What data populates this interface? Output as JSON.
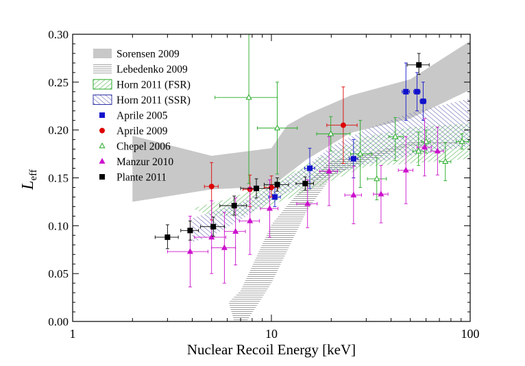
{
  "chart_data": {
    "type": "scatter",
    "title": "",
    "xlabel": "Nuclear Recoil Energy [keV]",
    "ylabel_main": "L",
    "ylabel_sub": "eff",
    "xscale": "log",
    "xlim": [
      1,
      100
    ],
    "ylim": [
      0,
      0.3
    ],
    "xticks": [
      {
        "value": 1,
        "label": "1"
      },
      {
        "value": 10,
        "label": "10"
      },
      {
        "value": 100,
        "label": "100"
      }
    ],
    "yticks": [
      {
        "value": 0.0,
        "label": "0.00"
      },
      {
        "value": 0.05,
        "label": "0.05"
      },
      {
        "value": 0.1,
        "label": "0.10"
      },
      {
        "value": 0.15,
        "label": "0.15"
      },
      {
        "value": 0.2,
        "label": "0.20"
      },
      {
        "value": 0.25,
        "label": "0.25"
      },
      {
        "value": 0.3,
        "label": "0.30"
      }
    ],
    "legend_position": "top-left",
    "bands": [
      {
        "name": "Sorensen 2009",
        "style": "solid",
        "color": "#c8c8c8",
        "upper": [
          [
            2,
            0.194
          ],
          [
            5,
            0.173
          ],
          [
            10,
            0.181
          ],
          [
            12,
            0.205
          ],
          [
            15,
            0.216
          ],
          [
            25,
            0.236
          ],
          [
            50,
            0.253
          ],
          [
            100,
            0.293
          ]
        ],
        "lower": [
          [
            100,
            0.242
          ],
          [
            50,
            0.212
          ],
          [
            25,
            0.197
          ],
          [
            15,
            0.169
          ],
          [
            10,
            0.141
          ],
          [
            5,
            0.138
          ],
          [
            2,
            0.125
          ]
        ]
      },
      {
        "name": "Lebedenko 2009",
        "style": "hlines",
        "color": "#999999",
        "upper": [
          [
            7,
            0.032
          ],
          [
            10,
            0.101
          ],
          [
            15,
            0.145
          ],
          [
            20,
            0.168
          ],
          [
            30,
            0.175
          ],
          [
            50,
            0.187
          ],
          [
            100,
            0.187
          ]
        ],
        "lower": [
          [
            100,
            0.187
          ],
          [
            50,
            0.183
          ],
          [
            30,
            0.168
          ],
          [
            20,
            0.151
          ],
          [
            15,
            0.115
          ],
          [
            10,
            0.04
          ],
          [
            7.5,
            0.0
          ],
          [
            6.5,
            0.0
          ],
          [
            6.1,
            0.02
          ]
        ]
      },
      {
        "name": "Horn 2011 (FSR)",
        "style": "diag-green",
        "color": "#7cc07c",
        "border": "#22aa22",
        "upper": [
          [
            6,
            0.128
          ],
          [
            10,
            0.144
          ],
          [
            15,
            0.164
          ],
          [
            20,
            0.177
          ],
          [
            30,
            0.193
          ],
          [
            50,
            0.203
          ],
          [
            100,
            0.207
          ]
        ],
        "lower": [
          [
            100,
            0.17
          ],
          [
            50,
            0.165
          ],
          [
            30,
            0.162
          ],
          [
            20,
            0.147
          ],
          [
            15,
            0.135
          ],
          [
            10,
            0.122
          ],
          [
            7,
            0.11
          ],
          [
            5,
            0.11
          ],
          [
            4,
            0.118
          ]
        ]
      },
      {
        "name": "Horn 2011 (SSR)",
        "style": "diag-blue",
        "color": "#8a8ac8",
        "border": "#3333aa",
        "upper": [
          [
            4,
            0.108
          ],
          [
            7,
            0.124
          ],
          [
            10,
            0.141
          ],
          [
            15,
            0.162
          ],
          [
            20,
            0.183
          ],
          [
            30,
            0.201
          ],
          [
            50,
            0.218
          ],
          [
            100,
            0.233
          ]
        ],
        "lower": [
          [
            100,
            0.183
          ],
          [
            50,
            0.173
          ],
          [
            30,
            0.164
          ],
          [
            20,
            0.153
          ],
          [
            15,
            0.143
          ],
          [
            10,
            0.127
          ],
          [
            7,
            0.106
          ],
          [
            5,
            0.089
          ],
          [
            4,
            0.083
          ]
        ]
      }
    ],
    "series": [
      {
        "name": "Aprile 2005",
        "marker": "square",
        "color": "#1111cc",
        "filled": true,
        "points": [
          {
            "x": 10.4,
            "y": 0.13,
            "xerr": [
              0.7,
              0.7
            ],
            "yerr": [
              0.01,
              0.01
            ]
          },
          {
            "x": 15.6,
            "y": 0.16,
            "xerr": [
              0.9,
              0.9
            ],
            "yerr": [
              0.021,
              0.021
            ]
          },
          {
            "x": 25.9,
            "y": 0.17,
            "xerr": [
              1.3,
              1.3
            ],
            "yerr": [
              0.02,
              0.02
            ]
          },
          {
            "x": 47.5,
            "y": 0.24,
            "xerr": [
              2.0,
              2.0
            ],
            "yerr": [
              0.03,
              0.03
            ]
          },
          {
            "x": 54.0,
            "y": 0.24,
            "xerr": [
              2.0,
              2.0
            ],
            "yerr": [
              0.02,
              0.02
            ]
          },
          {
            "x": 58.0,
            "y": 0.23,
            "xerr": [
              2.0,
              2.0
            ],
            "yerr": [
              0.02,
              0.02
            ]
          }
        ]
      },
      {
        "name": "Aprile 2009",
        "marker": "circle",
        "color": "#dd0000",
        "filled": true,
        "points": [
          {
            "x": 5.0,
            "y": 0.141,
            "xerr": [
              0.4,
              0.4
            ],
            "yerr": [
              0.035,
              0.025
            ]
          },
          {
            "x": 7.8,
            "y": 0.138,
            "xerr": [
              0.6,
              0.6
            ],
            "yerr": [
              0.018,
              0.015
            ]
          },
          {
            "x": 10.0,
            "y": 0.14,
            "xerr": [
              0.8,
              0.8
            ],
            "yerr": [
              0.01,
              0.012
            ]
          },
          {
            "x": 23.0,
            "y": 0.205,
            "xerr": [
              4.0,
              4.0
            ],
            "yerr": [
              0.04,
              0.04
            ]
          }
        ]
      },
      {
        "name": "Chepel 2006",
        "marker": "triangle",
        "color": "#22aa22",
        "filled": false,
        "points": [
          {
            "x": 7.7,
            "y": 0.234,
            "xerr": [
              2.5,
              3.0
            ],
            "yerr": [
              0.09,
              0.085
            ]
          },
          {
            "x": 10.7,
            "y": 0.202,
            "xerr": [
              2.2,
              2.8
            ],
            "yerr": [
              0.048,
              0.048
            ]
          },
          {
            "x": 19.9,
            "y": 0.196,
            "xerr": [
              3.0,
              5.0
            ],
            "yerr": [
              0.018,
              0.018
            ]
          },
          {
            "x": 28.0,
            "y": 0.175,
            "xerr": [
              3.0,
              4.0
            ],
            "yerr": [
              0.035,
              0.035
            ]
          },
          {
            "x": 33.9,
            "y": 0.149,
            "xerr": [
              3.5,
              4.0
            ],
            "yerr": [
              0.022,
              0.022
            ]
          },
          {
            "x": 42.0,
            "y": 0.193,
            "xerr": [
              3.0,
              4.0
            ],
            "yerr": [
              0.025,
              0.02
            ]
          },
          {
            "x": 55.0,
            "y": 0.178,
            "xerr": [
              3.5,
              4.0
            ],
            "yerr": [
              0.015,
              0.02
            ]
          },
          {
            "x": 60.0,
            "y": 0.188,
            "xerr": [
              3.0,
              3.0
            ],
            "yerr": [
              0.012,
              0.012
            ]
          },
          {
            "x": 75.0,
            "y": 0.167,
            "xerr": [
              5.0,
              5.0
            ],
            "yerr": [
              0.02,
              0.02
            ]
          },
          {
            "x": 91.0,
            "y": 0.188,
            "xerr": [
              6.0,
              7.0
            ],
            "yerr": [
              0.008,
              0.008
            ]
          }
        ]
      },
      {
        "name": "Manzur 2010",
        "marker": "triangle",
        "color": "#cc11cc",
        "filled": true,
        "points": [
          {
            "x": 3.9,
            "y": 0.073,
            "xerr": [
              0.9,
              0.9
            ],
            "yerr": [
              0.037,
              0.037
            ]
          },
          {
            "x": 5.0,
            "y": 0.088,
            "xerr": [
              0.9,
              0.9
            ],
            "yerr": [
              0.038,
              0.038
            ]
          },
          {
            "x": 5.8,
            "y": 0.077,
            "xerr": [
              0.8,
              0.8
            ],
            "yerr": [
              0.037,
              0.037
            ]
          },
          {
            "x": 6.6,
            "y": 0.094,
            "xerr": [
              0.8,
              0.8
            ],
            "yerr": [
              0.035,
              0.035
            ]
          },
          {
            "x": 7.8,
            "y": 0.105,
            "xerr": [
              0.9,
              0.9
            ],
            "yerr": [
              0.035,
              0.035
            ]
          },
          {
            "x": 9.8,
            "y": 0.118,
            "xerr": [
              1.0,
              1.0
            ],
            "yerr": [
              0.03,
              0.03
            ]
          },
          {
            "x": 15.2,
            "y": 0.123,
            "xerr": [
              1.8,
              1.8
            ],
            "yerr": [
              0.025,
              0.025
            ]
          },
          {
            "x": 19.5,
            "y": 0.157,
            "xerr": [
              2.0,
              2.0
            ],
            "yerr": [
              0.036,
              0.036
            ]
          },
          {
            "x": 25.9,
            "y": 0.132,
            "xerr": [
              2.5,
              2.5
            ],
            "yerr": [
              0.03,
              0.03
            ]
          },
          {
            "x": 35.6,
            "y": 0.133,
            "xerr": [
              3.0,
              3.0
            ],
            "yerr": [
              0.03,
              0.03
            ]
          },
          {
            "x": 47.5,
            "y": 0.158,
            "xerr": [
              4.0,
              4.0
            ],
            "yerr": [
              0.035,
              0.035
            ]
          },
          {
            "x": 59.0,
            "y": 0.182,
            "xerr": [
              5.0,
              5.0
            ],
            "yerr": [
              0.03,
              0.03
            ]
          },
          {
            "x": 68.5,
            "y": 0.178,
            "xerr": [
              5.0,
              5.0
            ],
            "yerr": [
              0.025,
              0.025
            ]
          }
        ]
      },
      {
        "name": "Plante 2011",
        "marker": "square",
        "color": "#000000",
        "filled": true,
        "points": [
          {
            "x": 3.0,
            "y": 0.088,
            "xerr": [
              0.4,
              0.4
            ],
            "yerr": [
              0.012,
              0.013
            ]
          },
          {
            "x": 3.9,
            "y": 0.095,
            "xerr": [
              0.4,
              0.4
            ],
            "yerr": [
              0.01,
              0.01
            ]
          },
          {
            "x": 5.1,
            "y": 0.099,
            "xerr": [
              0.7,
              0.7
            ],
            "yerr": [
              0.01,
              0.01
            ]
          },
          {
            "x": 6.5,
            "y": 0.121,
            "xerr": [
              1.0,
              1.0
            ],
            "yerr": [
              0.01,
              0.01
            ]
          },
          {
            "x": 8.4,
            "y": 0.139,
            "xerr": [
              1.4,
              1.4
            ],
            "yerr": [
              0.01,
              0.01
            ]
          },
          {
            "x": 10.7,
            "y": 0.143,
            "xerr": [
              1.5,
              1.5
            ],
            "yerr": [
              0.007,
              0.007
            ]
          },
          {
            "x": 14.8,
            "y": 0.144,
            "xerr": [
              1.5,
              1.5
            ],
            "yerr": [
              0.007,
              0.007
            ]
          },
          {
            "x": 55.2,
            "y": 0.268,
            "xerr": [
              7.0,
              7.0
            ],
            "yerr": [
              0.01,
              0.012
            ]
          }
        ]
      }
    ]
  }
}
